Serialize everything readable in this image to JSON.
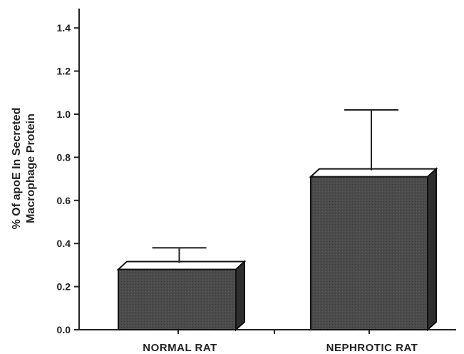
{
  "chart_data": {
    "type": "bar",
    "categories": [
      "NORMAL RAT",
      "NEPHROTIC RAT"
    ],
    "values": [
      0.28,
      0.71
    ],
    "error_upper": [
      0.38,
      1.02
    ],
    "ylabel": [
      "% Of apoE  In Secreted",
      "Macrophage Protein"
    ],
    "ylim": [
      0,
      1.5
    ],
    "yticks": [
      0.0,
      0.2,
      0.4,
      0.6,
      0.8,
      1.0,
      1.2,
      1.4
    ],
    "ytick_labels": [
      "0.0",
      "0.2",
      "0.4",
      "0.6",
      "0.8",
      "1.0",
      "1.2",
      "1.4"
    ],
    "grid": false,
    "style": "3d-bar",
    "bar_color": "#4a4a4a"
  }
}
